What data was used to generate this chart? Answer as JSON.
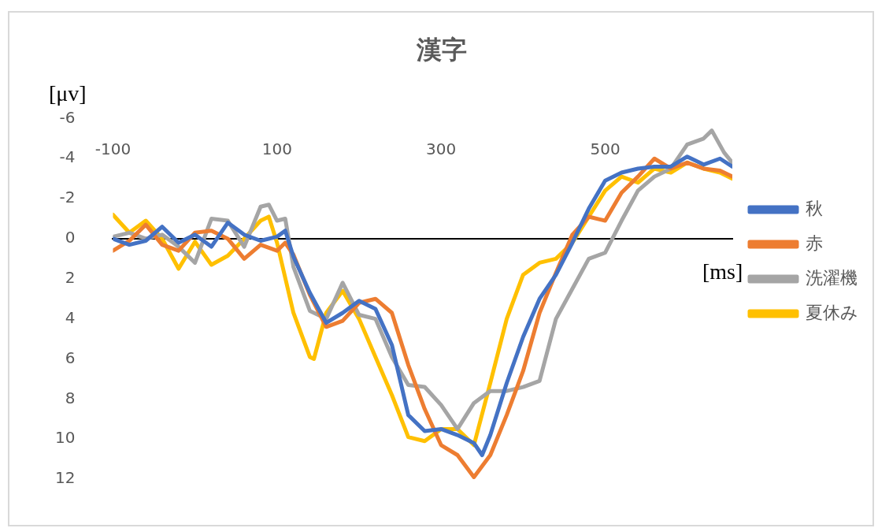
{
  "chart_data": {
    "type": "line",
    "title": "漢字",
    "xlabel": "[ms]",
    "ylabel": "[μv]",
    "xlim": [
      -100,
      655
    ],
    "xticks": [
      -100,
      100,
      300,
      500
    ],
    "ylim": [
      12,
      -6
    ],
    "yticks": [
      -6,
      -4,
      -2,
      0,
      2,
      4,
      6,
      8,
      10,
      12
    ],
    "legend": "right",
    "marker": "none",
    "line_style": "solid",
    "series": [
      {
        "name": "秋",
        "color": "#4472c4",
        "x": [
          -100,
          -80,
          -60,
          -40,
          -20,
          0,
          20,
          40,
          60,
          80,
          100,
          110,
          120,
          140,
          160,
          180,
          200,
          220,
          240,
          260,
          280,
          300,
          320,
          340,
          350,
          360,
          380,
          400,
          420,
          440,
          460,
          480,
          500,
          520,
          540,
          560,
          580,
          600,
          620,
          640,
          655
        ],
        "values": [
          0,
          0.3,
          0.1,
          -0.6,
          0.2,
          -0.2,
          0.4,
          -0.8,
          -0.2,
          0.1,
          -0.1,
          -0.4,
          0.9,
          2.7,
          4.2,
          3.7,
          3.1,
          3.5,
          5.3,
          8.8,
          9.6,
          9.5,
          9.8,
          10.2,
          10.8,
          9.8,
          7.2,
          4.9,
          3,
          1.8,
          0.2,
          -1.5,
          -2.9,
          -3.3,
          -3.5,
          -3.6,
          -3.6,
          -4.1,
          -3.7,
          -4,
          -3.6
        ]
      },
      {
        "name": "赤",
        "color": "#ed7d31",
        "x": [
          -100,
          -80,
          -60,
          -40,
          -20,
          0,
          20,
          40,
          60,
          80,
          100,
          110,
          120,
          140,
          160,
          180,
          200,
          220,
          240,
          260,
          280,
          300,
          320,
          340,
          360,
          380,
          400,
          420,
          440,
          460,
          480,
          500,
          520,
          540,
          560,
          580,
          600,
          620,
          640,
          655
        ],
        "values": [
          0.6,
          0.1,
          -0.7,
          0.3,
          0.6,
          -0.3,
          -0.4,
          0,
          1,
          0.3,
          0.6,
          0.2,
          0.8,
          2.8,
          4.4,
          4.1,
          3.2,
          3,
          3.7,
          6.3,
          8.5,
          10.3,
          10.8,
          11.9,
          10.8,
          8.8,
          6.6,
          3.7,
          1.7,
          -0.2,
          -1.1,
          -0.9,
          -2.3,
          -3.1,
          -4,
          -3.5,
          -3.8,
          -3.5,
          -3.4,
          -3.1
        ]
      },
      {
        "name": "洗濯機",
        "color": "#a5a5a5",
        "x": [
          -100,
          -80,
          -60,
          -40,
          -20,
          0,
          20,
          40,
          60,
          80,
          90,
          100,
          110,
          120,
          140,
          160,
          180,
          200,
          220,
          240,
          260,
          280,
          300,
          320,
          340,
          360,
          380,
          400,
          420,
          440,
          460,
          480,
          500,
          520,
          540,
          560,
          580,
          600,
          620,
          630,
          645,
          655
        ],
        "values": [
          -0.1,
          -0.3,
          0,
          -0.2,
          0.4,
          1.2,
          -1,
          -0.9,
          0.4,
          -1.6,
          -1.7,
          -0.9,
          -1,
          1.4,
          3.6,
          4,
          2.2,
          3.8,
          4,
          5.9,
          7.3,
          7.4,
          8.3,
          9.5,
          8.2,
          7.6,
          7.6,
          7.4,
          7.1,
          4,
          2.5,
          1,
          0.7,
          -0.9,
          -2.4,
          -3.1,
          -3.5,
          -4.7,
          -5,
          -5.4,
          -4.3,
          -3.8
        ]
      },
      {
        "name": "夏休み",
        "color": "#ffc000",
        "x": [
          -100,
          -80,
          -60,
          -40,
          -20,
          0,
          20,
          40,
          60,
          80,
          90,
          100,
          120,
          140,
          145,
          160,
          180,
          200,
          220,
          240,
          260,
          280,
          300,
          320,
          340,
          360,
          380,
          400,
          420,
          440,
          460,
          480,
          500,
          520,
          540,
          560,
          580,
          600,
          620,
          640,
          655
        ],
        "values": [
          -1.2,
          -0.3,
          -0.9,
          0,
          1.5,
          0.15,
          1.3,
          0.85,
          0,
          -0.9,
          -1.1,
          0.2,
          3.7,
          5.9,
          6,
          3.7,
          2.6,
          4,
          5.9,
          7.8,
          9.9,
          10.1,
          9.5,
          9.5,
          10.3,
          7.2,
          4,
          1.8,
          1.2,
          1,
          0.2,
          -1.1,
          -2.4,
          -3.1,
          -2.8,
          -3.5,
          -3.3,
          -3.8,
          -3.5,
          -3.3,
          -3
        ]
      }
    ]
  }
}
